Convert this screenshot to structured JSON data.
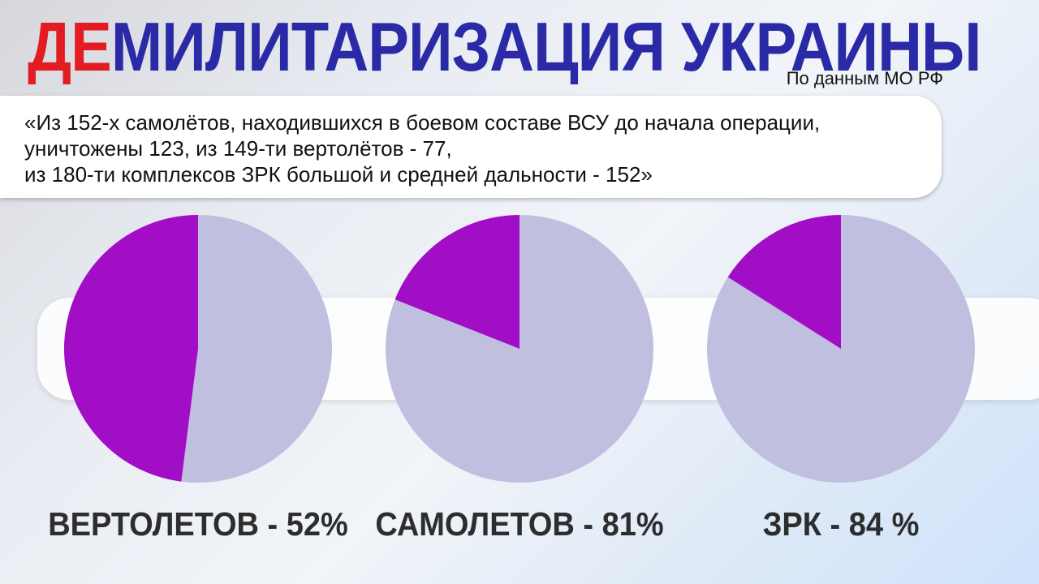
{
  "header": {
    "title_highlight": "ДЕ",
    "title_rest": "МИЛИТАРИЗАЦИЯ УКРАИНЫ",
    "source": "По данным МО РФ"
  },
  "quote": {
    "lines": [
      "«Из 152-х самолётов, находившихся в боевом составе ВСУ до начала операции,",
      "уничтожены 123, из 149-ти вертолётов - 77,",
      "из 180-ти комплексов ЗРК большой и средней дальности - 152»"
    ]
  },
  "colors": {
    "destroyed": "#a10ec6",
    "remaining": "#c0bfdf",
    "title_highlight": "#e31b23",
    "title_main": "#2a2aa6"
  },
  "chart_data": [
    {
      "type": "pie",
      "label": "ВЕРТОЛЕТОВ - 52%",
      "slices": [
        {
          "category": "destroyed",
          "percent": 52
        },
        {
          "category": "remaining",
          "percent": 48
        }
      ]
    },
    {
      "type": "pie",
      "label": "САМОЛЕТОВ - 81%",
      "slices": [
        {
          "category": "destroyed",
          "percent": 81
        },
        {
          "category": "remaining",
          "percent": 19
        }
      ]
    },
    {
      "type": "pie",
      "label": "ЗРК - 84 %",
      "slices": [
        {
          "category": "destroyed",
          "percent": 84
        },
        {
          "category": "remaining",
          "percent": 16
        }
      ]
    }
  ]
}
